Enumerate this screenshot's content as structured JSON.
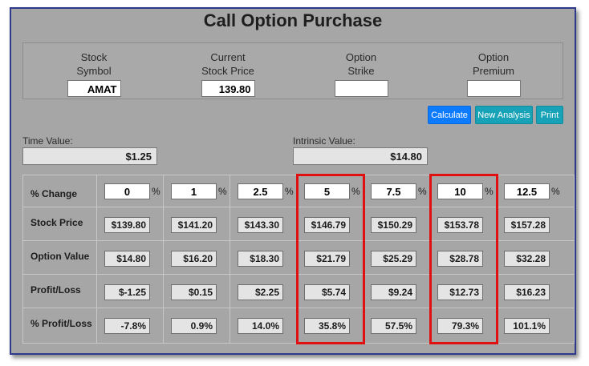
{
  "title": "Call Option Purchase",
  "fields": [
    {
      "label1": "Stock",
      "label2": "Symbol",
      "value": "AMAT"
    },
    {
      "label1": "Current",
      "label2": "Stock Price",
      "value": "139.80"
    },
    {
      "label1": "Option",
      "label2": "Strike",
      "value": ""
    },
    {
      "label1": "Option",
      "label2": "Premium",
      "value": ""
    }
  ],
  "buttons": {
    "calculate": "Calculate",
    "new_analysis": "New Analysis",
    "print": "Print"
  },
  "time_value": {
    "label": "Time Value:",
    "value": "$1.25"
  },
  "intrinsic_value": {
    "label": "Intrinsic Value:",
    "value": "$14.80"
  },
  "table": {
    "row_headers": [
      "% Change",
      "Stock Price",
      "Option Value",
      "Profit/Loss",
      "% Profit/Loss"
    ],
    "pct_symbol": "%",
    "columns": [
      {
        "change": "0",
        "stock": "$139.80",
        "option": "$14.80",
        "pl": "$-1.25",
        "plpct": "-7.8%"
      },
      {
        "change": "1",
        "stock": "$141.20",
        "option": "$16.20",
        "pl": "$0.15",
        "plpct": "0.9%"
      },
      {
        "change": "2.5",
        "stock": "$143.30",
        "option": "$18.30",
        "pl": "$2.25",
        "plpct": "14.0%"
      },
      {
        "change": "5",
        "stock": "$146.79",
        "option": "$21.79",
        "pl": "$5.74",
        "plpct": "35.8%"
      },
      {
        "change": "7.5",
        "stock": "$150.29",
        "option": "$25.29",
        "pl": "$9.24",
        "plpct": "57.5%"
      },
      {
        "change": "10",
        "stock": "$153.78",
        "option": "$28.78",
        "pl": "$12.73",
        "plpct": "79.3%"
      },
      {
        "change": "12.5",
        "stock": "$157.28",
        "option": "$32.28",
        "pl": "$16.23",
        "plpct": "101.1%"
      }
    ]
  },
  "highlight_color": "#e01010",
  "button_colors": {
    "calculate": "#0d7bff",
    "secondary": "#17a2b8"
  }
}
